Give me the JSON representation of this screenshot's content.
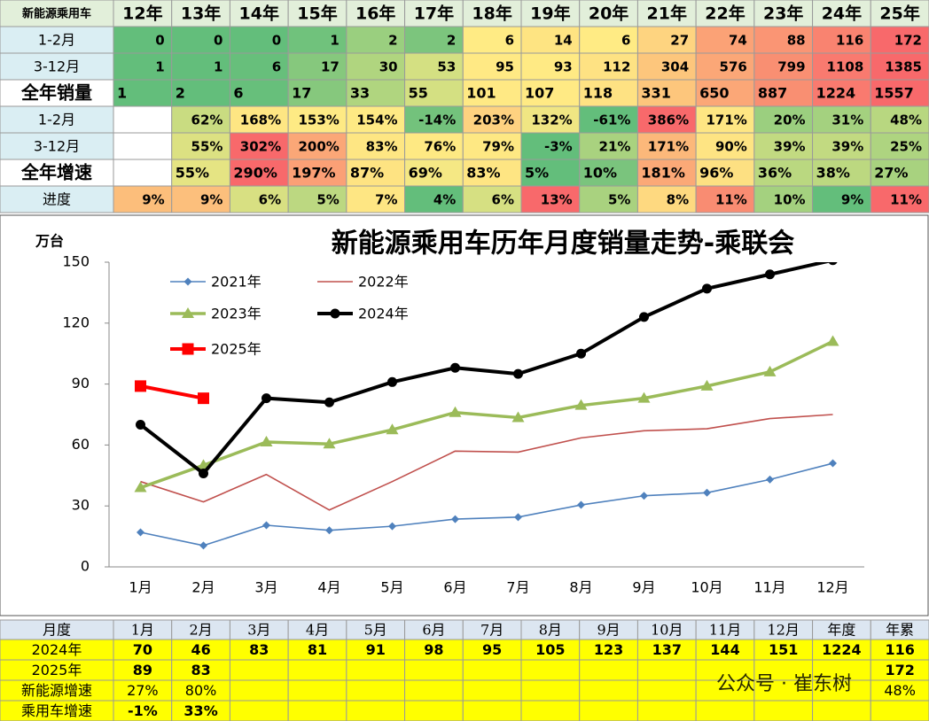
{
  "top_table": {
    "header": [
      "新能源乘用车",
      "12年",
      "13年",
      "14年",
      "15年",
      "16年",
      "17年",
      "18年",
      "19年",
      "20年",
      "21年",
      "22年",
      "23年",
      "24年",
      "25年"
    ],
    "rows": [
      {
        "cells": [
          "1-2月",
          "0",
          "0",
          "0",
          "1",
          "2",
          "2",
          "6",
          "14",
          "6",
          "27",
          "74",
          "88",
          "116",
          "172"
        ],
        "colors": [
          "#63be7b",
          "#63be7b",
          "#63be7b",
          "#70c27c",
          "#9acf7f",
          "#7cc57d",
          "#ffeb84",
          "#fee482",
          "#ffeb84",
          "#fed480",
          "#fba276",
          "#fa9574",
          "#f98370",
          "#f8696b"
        ]
      },
      {
        "cells": [
          "3-12月",
          "1",
          "1",
          "6",
          "17",
          "30",
          "53",
          "95",
          "93",
          "112",
          "304",
          "576",
          "799",
          "1108",
          "1385"
        ],
        "colors": [
          "#63be7b",
          "#63be7b",
          "#67bf7b",
          "#86c87d",
          "#b0d57f",
          "#d4e082",
          "#ffe984",
          "#ffea84",
          "#fee283",
          "#fdc67c",
          "#fba777",
          "#f98f72",
          "#f97a6f",
          "#f8696b"
        ]
      },
      {
        "cells": [
          "全年销量",
          "1",
          "2",
          "6",
          "17",
          "33",
          "55",
          "101",
          "107",
          "118",
          "331",
          "650",
          "887",
          "1224",
          "1557"
        ],
        "colors": [
          "#63be7b",
          "#63be7b",
          "#67bf7b",
          "#86c87d",
          "#b0d57f",
          "#d4e082",
          "#ffe984",
          "#ffea84",
          "#fee283",
          "#fdc67c",
          "#fba777",
          "#f98f72",
          "#f97a6f",
          "#f8696b"
        ]
      },
      {
        "cells": [
          "1-2月",
          null,
          "62%",
          "168%",
          "153%",
          "154%",
          "-14%",
          "203%",
          "132%",
          "-61%",
          "386%",
          "171%",
          "20%",
          "31%",
          "48%"
        ],
        "colors": [
          null,
          "#c9dc81",
          "#fee683",
          "#feea84",
          "#feea84",
          "#73c27c",
          "#fed280",
          "#f0e683",
          "#63be7b",
          "#f8696b",
          "#fee683",
          "#9bcf7f",
          "#a4d17f",
          "#b8d780"
        ]
      },
      {
        "cells": [
          "3-12月",
          null,
          "55%",
          "302%",
          "200%",
          "83%",
          "76%",
          "79%",
          "-3%",
          "21%",
          "171%",
          "90%",
          "39%",
          "39%",
          "25%"
        ],
        "colors": [
          null,
          "#dce182",
          "#f8696b",
          "#fba777",
          "#fee683",
          "#fee983",
          "#fee883",
          "#63be7b",
          "#a9d27f",
          "#fcb87a",
          "#fee483",
          "#c2da81",
          "#c2da81",
          "#aed480"
        ]
      },
      {
        "cells": [
          "全年增速",
          null,
          "55%",
          "290%",
          "197%",
          "87%",
          "69%",
          "83%",
          "5%",
          "10%",
          "181%",
          "96%",
          "36%",
          "38%",
          "27%"
        ],
        "colors": [
          null,
          "#e5e483",
          "#f8696b",
          "#fba076",
          "#fee382",
          "#f5e884",
          "#fee583",
          "#63be7b",
          "#7ac47d",
          "#fba977",
          "#fde082",
          "#bad880",
          "#bcd880",
          "#a8d27f"
        ]
      },
      {
        "cells": [
          "进度",
          "9%",
          "9%",
          "6%",
          "5%",
          "7%",
          "4%",
          "6%",
          "13%",
          "5%",
          "8%",
          "11%",
          "10%",
          "9%",
          "11%"
        ],
        "colors": [
          "#fcbe7b",
          "#fcbf7c",
          "#d8e082",
          "#bcd881",
          "#fee683",
          "#63be7b",
          "#d6e082",
          "#f8696b",
          "#a9d27f",
          "#fed980",
          "#f98c72",
          "#a4d17f",
          "#63be7b",
          "#f8696b"
        ]
      }
    ]
  },
  "chart_data": {
    "type": "line",
    "title": "新能源乘用车历年月度销量走势-乘联会",
    "y_label": "万台",
    "categories": [
      "1月",
      "2月",
      "3月",
      "4月",
      "5月",
      "6月",
      "7月",
      "8月",
      "9月",
      "10月",
      "11月",
      "12月"
    ],
    "ylim": [
      0,
      150
    ],
    "yticks": [
      0,
      30,
      60,
      90,
      120,
      150
    ],
    "grid": false,
    "series": [
      {
        "name": "2021年",
        "color": "#4f81bd",
        "marker": "diamond",
        "values": [
          17,
          10.5,
          20.5,
          18,
          20,
          23.5,
          24.5,
          30.5,
          35,
          36.5,
          43,
          51
        ]
      },
      {
        "name": "2022年",
        "color": "#c0504d",
        "marker": "none",
        "values": [
          42,
          32,
          45.5,
          28,
          42,
          57,
          56.5,
          63.5,
          67,
          68,
          73,
          75
        ]
      },
      {
        "name": "2023年",
        "color": "#9bbb59",
        "marker": "triangle",
        "values": [
          39,
          50,
          61.5,
          60.5,
          67.5,
          76,
          73.5,
          79.5,
          83,
          89,
          96,
          111
        ]
      },
      {
        "name": "2024年",
        "color": "#000000",
        "marker": "circle",
        "values": [
          70,
          46,
          83,
          81,
          91,
          98,
          95,
          105,
          123,
          137,
          144,
          151
        ]
      },
      {
        "name": "2025年",
        "color": "#ff0000",
        "marker": "square",
        "values": [
          89,
          83,
          null,
          null,
          null,
          null,
          null,
          null,
          null,
          null,
          null,
          null
        ]
      }
    ]
  },
  "bottom_table": {
    "header": [
      "月度",
      "1月",
      "2月",
      "3月",
      "4月",
      "5月",
      "6月",
      "7月",
      "8月",
      "9月",
      "10月",
      "11月",
      "12月",
      "年度",
      "年累"
    ],
    "rows": [
      {
        "cells": [
          "2024年",
          "70",
          "46",
          "83",
          "81",
          "91",
          "98",
          "95",
          "105",
          "123",
          "137",
          "144",
          "151",
          "1224",
          "116"
        ]
      },
      {
        "cells": [
          "2025年",
          "89",
          "83",
          null,
          null,
          null,
          null,
          null,
          null,
          null,
          null,
          null,
          null,
          null,
          "172"
        ]
      },
      {
        "cells": [
          "新能源增速",
          "27%",
          "80%",
          null,
          null,
          null,
          null,
          null,
          null,
          null,
          null,
          null,
          null,
          null,
          "48%"
        ]
      },
      {
        "cells": [
          "乘用车增速",
          "-1%",
          "33%",
          null,
          null,
          null,
          null,
          null,
          null,
          null,
          null,
          null,
          null,
          null,
          null
        ],
        "text_color": "#ff0000"
      }
    ]
  },
  "watermark": "公众号 · 崔东树"
}
